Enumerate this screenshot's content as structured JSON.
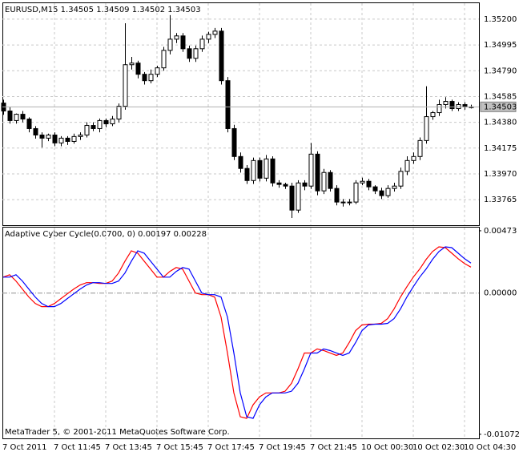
{
  "chart_data": [
    {
      "type": "candlestick",
      "title": "EURUSD,M15  1.34505 1.34509 1.34502 1.34503",
      "categories": [
        "7 Oct 2011",
        null,
        null,
        null,
        null,
        null,
        null,
        null,
        "7 Oct 11:45",
        null,
        null,
        null,
        null,
        null,
        null,
        null,
        "7 Oct 13:45",
        null,
        null,
        null,
        null,
        null,
        null,
        null,
        "7 Oct 15:45",
        null,
        null,
        null,
        null,
        null,
        null,
        null,
        "7 Oct 17:45",
        null,
        null,
        null,
        null,
        null,
        null,
        null,
        "7 Oct 19:45",
        null,
        null,
        null,
        null,
        null,
        null,
        null,
        "7 Oct 21:45",
        null,
        null,
        null,
        null,
        null,
        null,
        null,
        "10 Oct 00:30",
        null,
        null,
        null,
        null,
        null,
        null,
        null,
        "10 Oct 02:30",
        null,
        null,
        null,
        null,
        null,
        null,
        null,
        "10 Oct 04:30",
        null
      ],
      "open": [
        1.34533,
        1.3447,
        1.34394,
        1.34444,
        1.34406,
        1.3433,
        1.34279,
        1.34254,
        1.34279,
        1.34216,
        1.34254,
        1.34228,
        1.34267,
        1.34279,
        1.34355,
        1.3433,
        1.34394,
        1.34368,
        1.34406,
        1.34508,
        1.34838,
        1.34851,
        1.34762,
        1.34711,
        1.34762,
        1.34813,
        1.34952,
        1.35041,
        1.35067,
        1.34965,
        1.34889,
        1.34965,
        1.35041,
        1.35079,
        1.35105,
        1.34711,
        1.3433,
        1.34108,
        1.34013,
        1.33917,
        1.34076,
        1.33936,
        1.34089,
        1.33898,
        1.33886,
        1.33873,
        1.33682,
        1.33898,
        1.33873,
        1.34127,
        1.33835,
        1.33981,
        1.33854,
        1.33746,
        1.3374,
        1.33746,
        1.33898,
        1.33911,
        1.33867,
        1.33835,
        1.33797,
        1.33854,
        1.33873,
        1.3399,
        1.34076,
        1.34108,
        1.34235,
        1.34425,
        1.34457,
        1.34521,
        1.34546,
        1.34489,
        1.34521,
        1.34502
      ],
      "close": [
        1.3447,
        1.34394,
        1.34444,
        1.34406,
        1.3433,
        1.34279,
        1.34254,
        1.34279,
        1.34216,
        1.34254,
        1.34228,
        1.34267,
        1.34279,
        1.34355,
        1.3433,
        1.34394,
        1.34368,
        1.34406,
        1.34508,
        1.34838,
        1.34851,
        1.34762,
        1.34711,
        1.34762,
        1.34813,
        1.34952,
        1.35041,
        1.35067,
        1.34965,
        1.34889,
        1.34965,
        1.35041,
        1.35079,
        1.35105,
        1.34711,
        1.3433,
        1.34108,
        1.34013,
        1.33917,
        1.34076,
        1.33936,
        1.34089,
        1.33898,
        1.33886,
        1.33873,
        1.33682,
        1.33898,
        1.33873,
        1.34127,
        1.33835,
        1.33981,
        1.33854,
        1.33746,
        1.3374,
        1.33746,
        1.33898,
        1.33911,
        1.33867,
        1.33835,
        1.33797,
        1.33854,
        1.33873,
        1.3399,
        1.34076,
        1.34108,
        1.34235,
        1.34425,
        1.34457,
        1.34521,
        1.34546,
        1.34489,
        1.34521,
        1.34502,
        1.34503
      ],
      "high": [
        1.3456,
        1.345,
        1.3445,
        1.3447,
        1.3442,
        1.3435,
        1.343,
        1.3429,
        1.343,
        1.3427,
        1.3427,
        1.3429,
        1.343,
        1.3438,
        1.3438,
        1.3441,
        1.3441,
        1.3443,
        1.3453,
        1.35168,
        1.349,
        1.3487,
        1.3478,
        1.348,
        1.3483,
        1.3498,
        1.35232,
        1.3509,
        1.3509,
        1.3499,
        1.3499,
        1.3507,
        1.351,
        1.3513,
        1.3513,
        1.3474,
        1.3436,
        1.3414,
        1.3404,
        1.341,
        1.341,
        1.3412,
        1.3411,
        1.3392,
        1.339,
        1.339,
        1.3392,
        1.3392,
        1.34216,
        1.3415,
        1.3401,
        1.34,
        1.3388,
        1.3377,
        1.3377,
        1.3392,
        1.3394,
        1.3393,
        1.3388,
        1.3386,
        1.3388,
        1.339,
        1.3402,
        1.3411,
        1.3414,
        1.3426,
        1.34667,
        1.3447,
        1.3456,
        1.3458,
        1.3456,
        1.3454,
        1.3454,
        1.3452
      ],
      "low": [
        1.3444,
        1.3437,
        1.3437,
        1.3438,
        1.343,
        1.3425,
        1.3418,
        1.3423,
        1.3419,
        1.3419,
        1.342,
        1.3421,
        1.3424,
        1.3426,
        1.3431,
        1.343,
        1.3434,
        1.3435,
        1.3438,
        1.3448,
        1.348,
        1.3473,
        1.3468,
        1.3469,
        1.3474,
        1.3479,
        1.3492,
        1.3501,
        1.3494,
        1.3486,
        1.3486,
        1.3494,
        1.3501,
        1.3505,
        1.3468,
        1.343,
        1.3408,
        1.3398,
        1.3389,
        1.3389,
        1.3391,
        1.3391,
        1.3387,
        1.3386,
        1.3385,
        1.33619,
        1.3366,
        1.3384,
        1.3385,
        1.338,
        1.3381,
        1.3383,
        1.3372,
        1.3371,
        1.3372,
        1.3373,
        1.3388,
        1.3384,
        1.3381,
        1.3377,
        1.3378,
        1.3383,
        1.3385,
        1.3396,
        1.3405,
        1.3408,
        1.3421,
        1.344,
        1.3443,
        1.3449,
        1.3447,
        1.3447,
        1.3448,
        1.3449
      ],
      "up_color": "#ffffff",
      "down_color": "#000000",
      "line_color": "#000000",
      "current_price": {
        "value": 1.34503,
        "label": "1.34503"
      },
      "ylim": [
        1.33562,
        1.35327
      ],
      "yticks": [
        {
          "value": 1.352,
          "label": "1.35200"
        },
        {
          "value": 1.34995,
          "label": "1.34995"
        },
        {
          "value": 1.3479,
          "label": "1.34790"
        },
        {
          "value": 1.34585,
          "label": "1.34585"
        },
        {
          "value": 1.3438,
          "label": "1.34380"
        },
        {
          "value": 1.34175,
          "label": "1.34175"
        },
        {
          "value": 1.3397,
          "label": "1.33970"
        },
        {
          "value": 1.33765,
          "label": "1.33765"
        }
      ],
      "grid": true
    },
    {
      "type": "line",
      "title": "Adaptive Cyber Cycle(0.0700, 0) 0.00197 0.00228",
      "footer": "MetaTrader 5, © 2001-2011 MetaQuotes Software Corp.",
      "series": [
        {
          "color": "#ff0000",
          "values": [
            0.00121,
            0.00139,
            0.00091,
            0.0003,
            -0.0003,
            -0.00079,
            -0.00103,
            -0.00103,
            -0.00079,
            -0.00042,
            -6e-05,
            0.0003,
            0.00061,
            0.00079,
            0.00079,
            0.00073,
            0.00073,
            0.00091,
            0.00152,
            0.00242,
            0.00321,
            0.00303,
            0.00242,
            0.00182,
            0.00121,
            0.00121,
            0.00164,
            0.00194,
            0.00182,
            0.00091,
            0,
            -0.00012,
            -0.00012,
            -0.0003,
            -0.00182,
            -0.00455,
            -0.00758,
            -0.00939,
            -0.00951,
            -0.00848,
            -0.00788,
            -0.00758,
            -0.00758,
            -0.00758,
            -0.00745,
            -0.00685,
            -0.00576,
            -0.00455,
            -0.00455,
            -0.00424,
            -0.00436,
            -0.00455,
            -0.00473,
            -0.00455,
            -0.00376,
            -0.00285,
            -0.00242,
            -0.00236,
            -0.00236,
            -0.0023,
            -0.00194,
            -0.00121,
            -0.0003,
            0.00048,
            0.00121,
            0.00182,
            0.00255,
            0.00315,
            0.00351,
            0.00345,
            0.00303,
            0.00261,
            0.00224,
            0.00197
          ]
        },
        {
          "color": "#0000ff",
          "values": [
            0.00121,
            0.00121,
            0.00139,
            0.00091,
            0.0003,
            -0.0003,
            -0.00079,
            -0.00103,
            -0.00103,
            -0.00079,
            -0.00042,
            -6e-05,
            0.0003,
            0.00061,
            0.00079,
            0.00079,
            0.00073,
            0.00073,
            0.00091,
            0.00152,
            0.00242,
            0.00321,
            0.00303,
            0.00242,
            0.00182,
            0.00121,
            0.00121,
            0.00164,
            0.00194,
            0.00182,
            0.00091,
            0,
            -0.00012,
            -0.00012,
            -0.0003,
            -0.00182,
            -0.00455,
            -0.00758,
            -0.00939,
            -0.00951,
            -0.00848,
            -0.00788,
            -0.00758,
            -0.00758,
            -0.00758,
            -0.00745,
            -0.00685,
            -0.00576,
            -0.00455,
            -0.00455,
            -0.00424,
            -0.00436,
            -0.00455,
            -0.00473,
            -0.00455,
            -0.00376,
            -0.00285,
            -0.00242,
            -0.00236,
            -0.00236,
            -0.0023,
            -0.00194,
            -0.00121,
            -0.0003,
            0.00048,
            0.00121,
            0.00182,
            0.00255,
            0.00315,
            0.00351,
            0.00345,
            0.00303,
            0.00261,
            0.00228
          ]
        }
      ],
      "ylim": [
        -0.01103,
        0.00497
      ],
      "yticks": [
        {
          "value": 0.00473,
          "label": "0.00473"
        },
        {
          "value": 0,
          "label": "0.00000"
        },
        {
          "value": -0.01072,
          "label": "-0.01072"
        }
      ],
      "zero_line": true
    }
  ]
}
